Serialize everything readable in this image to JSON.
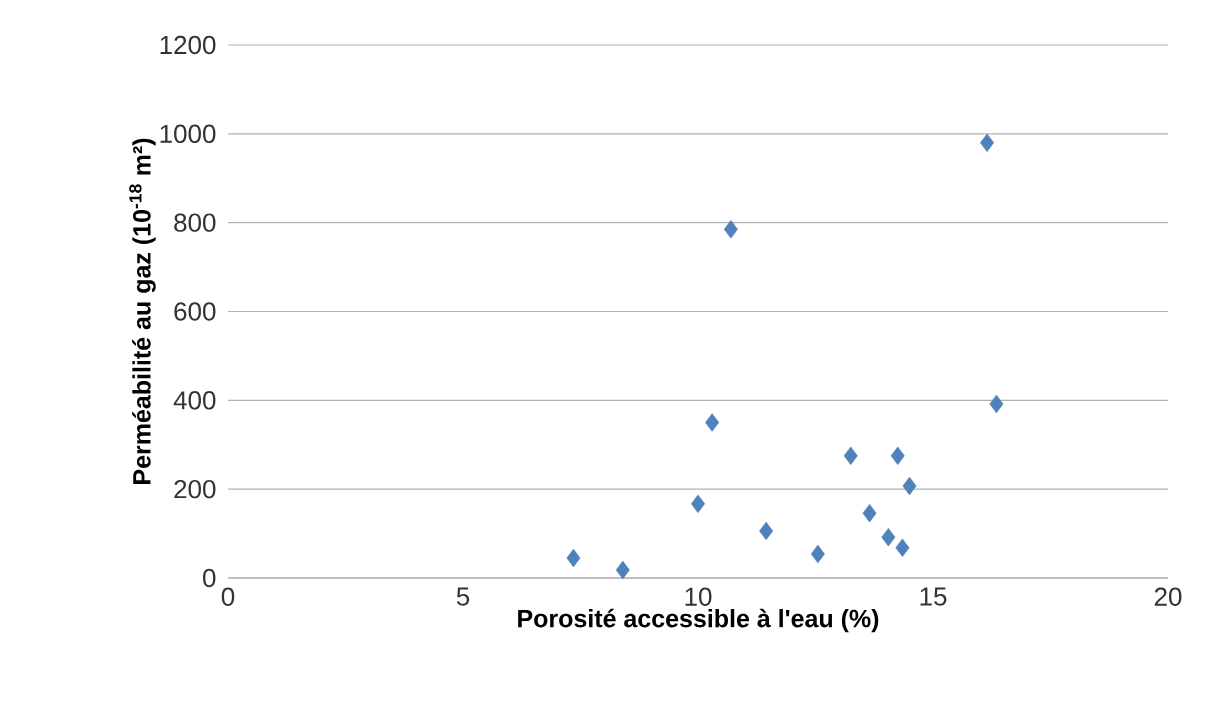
{
  "chart_data": {
    "type": "scatter",
    "xlabel": "Porosité accessible à l'eau  (%)",
    "ylabel": "Perméabilité au gaz (10$^{-18}$ m²)",
    "x": [
      7.35,
      8.4,
      10.0,
      10.3,
      10.7,
      11.45,
      12.55,
      13.25,
      13.65,
      14.05,
      14.25,
      14.35,
      14.5,
      16.15,
      16.35
    ],
    "values": [
      45,
      18,
      167,
      350,
      785,
      106,
      54,
      275,
      146,
      92,
      275,
      68,
      207,
      980,
      392
    ],
    "color": "#4f81bd",
    "marker": "diamond",
    "grid": "y",
    "xlim": [
      0,
      20
    ],
    "xticks": [
      0,
      5,
      10,
      15,
      20
    ],
    "ylim": [
      0,
      1200
    ],
    "yticks": [
      0,
      200,
      400,
      600,
      800,
      1000,
      1200
    ]
  }
}
